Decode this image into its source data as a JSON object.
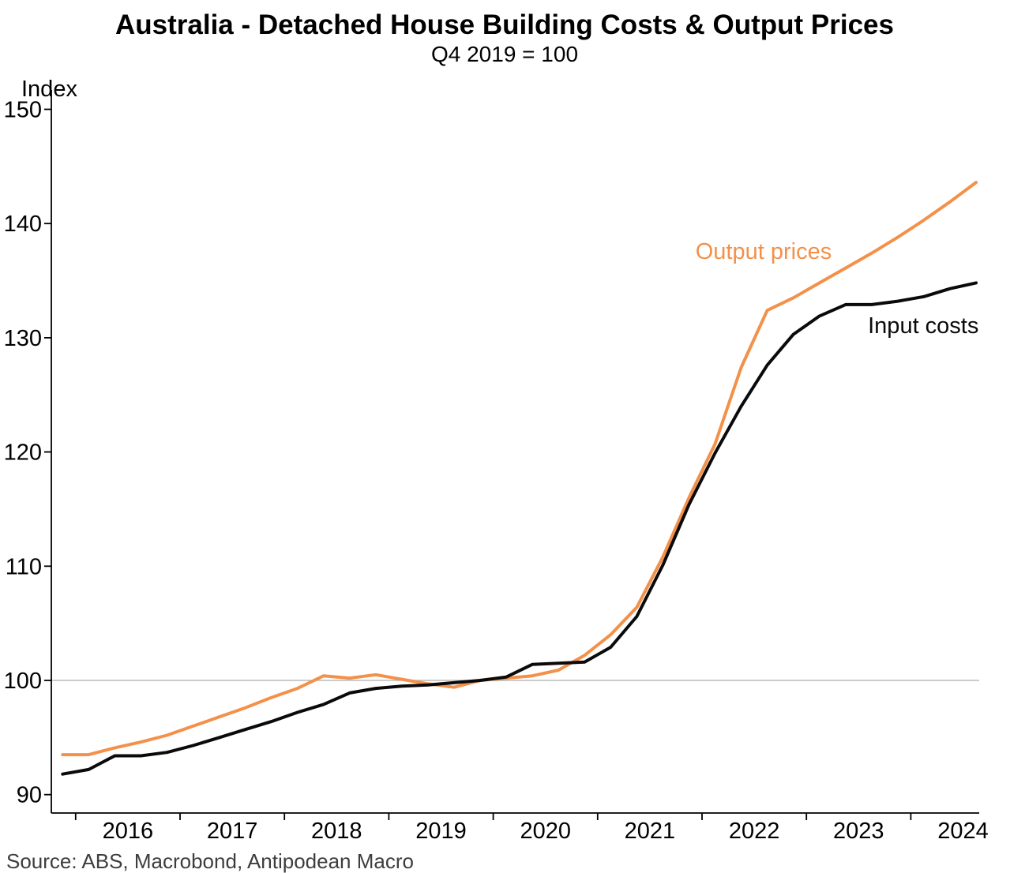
{
  "header": {
    "title": "Australia - Detached House Building Costs & Output Prices",
    "subtitle": "Q4 2019 = 100"
  },
  "source": "Source: ABS, Macrobond, Antipodean Macro",
  "colors": {
    "output_prices": "#F3914A",
    "input_costs": "#0a0a0a",
    "gridline": "#adadad",
    "axis": "#000000",
    "source_text": "#3d3d3d"
  },
  "chart_data": {
    "type": "line",
    "title": "Australia - Detached House Building Costs & Output Prices",
    "subtitle": "Q4 2019 = 100",
    "y_axis_label": "Index",
    "xlabel": "",
    "ylabel": "Index",
    "grid": "single horizontal gridline at 100 only",
    "legend_position": "inline labels next to lines",
    "ylim": [
      88.4,
      151.6
    ],
    "xlim_years": [
      2015.75,
      2024.88
    ],
    "y_ticks": [
      90,
      100,
      110,
      120,
      130,
      140,
      150
    ],
    "x_ticks_years": [
      2016,
      2017,
      2018,
      2019,
      2020,
      2021,
      2022,
      2023,
      2024
    ],
    "x_tick_labels": [
      "2016",
      "2017",
      "2018",
      "2019",
      "2020",
      "2021",
      "2022",
      "2023",
      "2024"
    ],
    "baseline_value": 100,
    "quarters": [
      "2015 Q4",
      "2016 Q1",
      "2016 Q2",
      "2016 Q3",
      "2016 Q4",
      "2017 Q1",
      "2017 Q2",
      "2017 Q3",
      "2017 Q4",
      "2018 Q1",
      "2018 Q2",
      "2018 Q3",
      "2018 Q4",
      "2019 Q1",
      "2019 Q2",
      "2019 Q3",
      "2019 Q4",
      "2020 Q1",
      "2020 Q2",
      "2020 Q3",
      "2020 Q4",
      "2021 Q1",
      "2021 Q2",
      "2021 Q3",
      "2021 Q4",
      "2022 Q1",
      "2022 Q2",
      "2022 Q3",
      "2022 Q4",
      "2023 Q1",
      "2023 Q2",
      "2023 Q3",
      "2023 Q4",
      "2024 Q1",
      "2024 Q2",
      "2024 Q3"
    ],
    "series": [
      {
        "name": "Output prices",
        "color": "#F3914A",
        "stroke_width": 4,
        "label_anchor": {
          "x_year": 2022.59,
          "y_value": 136.9
        },
        "values": [
          93.5,
          93.5,
          94.1,
          94.6,
          95.2,
          96.0,
          96.8,
          97.6,
          98.5,
          99.3,
          100.4,
          100.2,
          100.5,
          100.1,
          99.7,
          99.4,
          100.0,
          100.2,
          100.4,
          100.9,
          102.2,
          104.0,
          106.4,
          110.8,
          116.0,
          120.7,
          127.4,
          132.4,
          133.5,
          134.8,
          136.1,
          137.4,
          138.8,
          140.3,
          141.9,
          143.6
        ]
      },
      {
        "name": "Input costs",
        "color": "#0a0a0a",
        "stroke_width": 4,
        "label_anchor": {
          "x_year": 2024.12,
          "y_value": 130.4
        },
        "values": [
          91.8,
          92.2,
          93.4,
          93.4,
          93.7,
          94.3,
          95.0,
          95.7,
          96.4,
          97.2,
          97.9,
          98.9,
          99.3,
          99.5,
          99.6,
          99.8,
          100.0,
          100.3,
          101.4,
          101.5,
          101.6,
          102.9,
          105.6,
          110.1,
          115.4,
          119.9,
          124.0,
          127.6,
          130.3,
          131.9,
          132.9,
          132.9,
          133.2,
          133.6,
          134.3,
          134.8
        ]
      }
    ]
  }
}
